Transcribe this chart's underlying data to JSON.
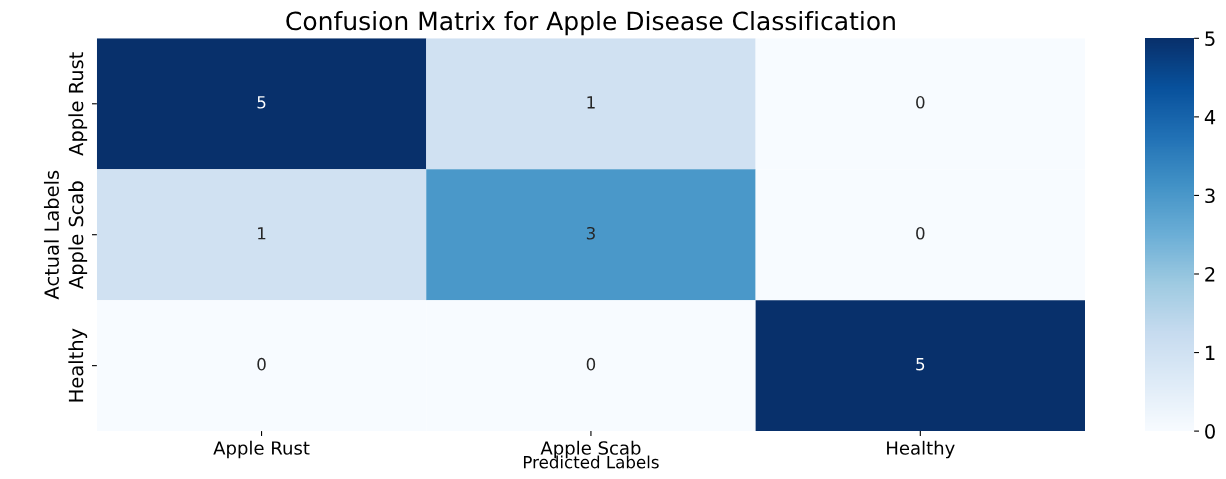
{
  "chart_data": {
    "type": "heatmap",
    "title": "Confusion Matrix for Apple Disease Classification",
    "xlabel": "Predicted Labels",
    "ylabel": "Actual Labels",
    "categories": [
      "Apple Rust",
      "Apple Scab",
      "Healthy"
    ],
    "y_categories": [
      "Apple Rust",
      "Apple Scab",
      "Healthy"
    ],
    "cells": [
      [
        5,
        1,
        0
      ],
      [
        1,
        3,
        0
      ],
      [
        0,
        0,
        5
      ]
    ],
    "clim": [
      0,
      5
    ],
    "cticks": [
      0,
      1,
      2,
      3,
      4,
      5
    ],
    "data_labels": true
  }
}
